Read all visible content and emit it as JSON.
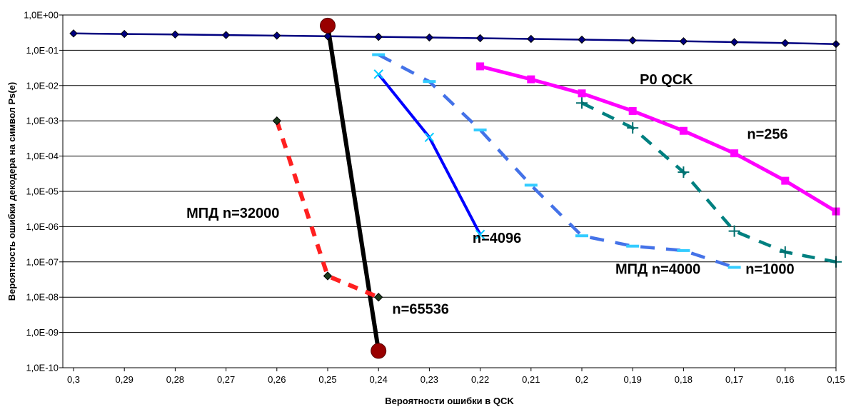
{
  "chart_data": {
    "type": "line",
    "title": "",
    "xlabel": "Вероятности ошибки в QCK",
    "ylabel": "Вероятность ошибки декодера на символ  Ps(e)",
    "x_reversed": true,
    "x_ticks": [
      0.3,
      0.29,
      0.28,
      0.27,
      0.26,
      0.25,
      0.24,
      0.23,
      0.22,
      0.21,
      0.2,
      0.19,
      0.18,
      0.17,
      0.16,
      0.15
    ],
    "x_tick_labels": [
      "0,3",
      "0,29",
      "0,28",
      "0,27",
      "0,26",
      "0,25",
      "0,24",
      "0,23",
      "0,22",
      "0,21",
      "0,2",
      "0,19",
      "0,18",
      "0,17",
      "0,16",
      "0,15"
    ],
    "y_scale": "log",
    "ylim": [
      1e-10,
      1
    ],
    "y_ticks": [
      1,
      0.1,
      0.01,
      0.001,
      0.0001,
      1e-05,
      1e-06,
      1e-07,
      1e-08,
      1e-09,
      1e-10
    ],
    "y_tick_labels": [
      "1,0E+00",
      "1,0E-01",
      "1,0E-02",
      "1,0E-03",
      "1,0E-04",
      "1,0E-05",
      "1,0E-06",
      "1,0E-07",
      "1,0E-08",
      "1,0E-09",
      "1,0E-10"
    ],
    "grid": "horizontal",
    "legend": "none",
    "series": [
      {
        "color": "#000080",
        "style": "solid",
        "marker": "diamond",
        "x": [
          0.3,
          0.29,
          0.28,
          0.27,
          0.26,
          0.25,
          0.24,
          0.23,
          0.22,
          0.21,
          0.2,
          0.19,
          0.18,
          0.17,
          0.16,
          0.15
        ],
        "y": [
          0.3,
          0.29,
          0.28,
          0.27,
          0.26,
          0.25,
          0.24,
          0.23,
          0.22,
          0.21,
          0.2,
          0.19,
          0.18,
          0.17,
          0.16,
          0.15
        ]
      },
      {
        "color": "#ff00ff",
        "style": "solid",
        "marker": "square",
        "x": [
          0.22,
          0.21,
          0.2,
          0.19,
          0.18,
          0.17,
          0.16,
          0.15
        ],
        "y": [
          0.035,
          0.015,
          0.006,
          0.0019,
          0.00052,
          0.00012,
          2e-05,
          2.7e-06
        ]
      },
      {
        "color": "#0000ff",
        "style": "solid",
        "marker": "x",
        "x": [
          0.24,
          0.23,
          0.22
        ],
        "y": [
          0.021,
          0.00034,
          6e-07
        ]
      },
      {
        "color": "#000000",
        "style": "solid",
        "marker": "circle",
        "x": [
          0.25,
          0.24
        ],
        "y": [
          0.5,
          3e-10
        ]
      },
      {
        "color": "#ff2020",
        "style": "dashed",
        "marker": "diamond",
        "x": [
          0.26,
          0.25,
          0.24
        ],
        "y": [
          0.001,
          4e-08,
          1e-08
        ]
      },
      {
        "color": "#4472e8",
        "style": "dashed",
        "marker": "dash",
        "x": [
          0.24,
          0.23,
          0.22,
          0.21,
          0.2,
          0.19,
          0.18,
          0.17
        ],
        "y": [
          0.075,
          0.013,
          0.00055,
          1.5e-05,
          5.5e-07,
          2.8e-07,
          2.1e-07,
          7e-08
        ]
      },
      {
        "color": "#008080",
        "style": "dashed",
        "marker": "plus",
        "x": [
          0.2,
          0.19,
          0.18,
          0.17,
          0.16,
          0.15
        ],
        "y": [
          0.0032,
          0.00063,
          3.5e-05,
          7.5e-07,
          1.9e-07,
          1e-07
        ]
      }
    ],
    "annotations": [
      {
        "id": "p0",
        "text": "P0  QCK",
        "x": 0.1886,
        "y": 0.011
      },
      {
        "id": "n256",
        "text": "n=256",
        "x": 0.1675,
        "y": 0.00031
      },
      {
        "id": "n4096",
        "text": "n=4096",
        "x": 0.2215,
        "y": 3.5e-07
      },
      {
        "id": "mpd32000",
        "text": "МПД   n=32000",
        "x": 0.2778,
        "y": 1.8e-06
      },
      {
        "id": "n65536",
        "text": "n=65536",
        "x": 0.2373,
        "y": 3.4e-09
      },
      {
        "id": "mpd4000",
        "text": "МПД   n=4000",
        "x": 0.1934,
        "y": 4.6e-08
      },
      {
        "id": "n1000",
        "text": "n=1000",
        "x": 0.1678,
        "y": 4.6e-08
      }
    ]
  }
}
